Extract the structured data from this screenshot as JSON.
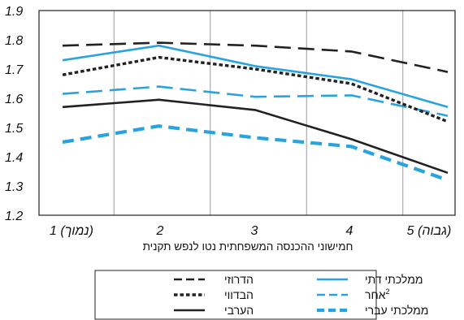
{
  "chart_data": {
    "type": "line",
    "xlabel": "חמישוני ההכנסה המשפחתית נטו לנפש תקנית",
    "x": [
      1,
      2,
      3,
      4,
      5
    ],
    "x_tick_labels": [
      "1 (נמוך)",
      "2",
      "3",
      "4",
      "5 (גבוה)"
    ],
    "ylim": [
      1.2,
      1.9
    ],
    "y_ticks": [
      "1.9",
      "1.8",
      "1.7",
      "1.6",
      "1.5",
      "1.4",
      "1.3",
      "1.2"
    ],
    "grid": "vertical",
    "legend_position": "bottom",
    "series": [
      {
        "name": "ממלכתי דתי",
        "color": "#29a3e0",
        "dash": "solid",
        "values": [
          1.73,
          1.78,
          1.71,
          1.665,
          1.57
        ]
      },
      {
        "name": "אחר",
        "name_sup": "2",
        "color": "#29a3e0",
        "dash": "dashed",
        "values": [
          1.615,
          1.64,
          1.605,
          1.61,
          1.54
        ]
      },
      {
        "name": "ממלכתי עברי",
        "color": "#29a3e0",
        "dash": "dashed-thick",
        "values": [
          1.45,
          1.505,
          1.465,
          1.435,
          1.32
        ]
      },
      {
        "name": "הדרוזי",
        "color": "#222222",
        "dash": "dashed",
        "values": [
          1.78,
          1.79,
          1.78,
          1.76,
          1.69
        ]
      },
      {
        "name": "הבדווי",
        "color": "#222222",
        "dash": "dotted",
        "values": [
          1.68,
          1.74,
          1.7,
          1.65,
          1.52
        ]
      },
      {
        "name": "הערבי",
        "color": "#222222",
        "dash": "solid",
        "values": [
          1.57,
          1.595,
          1.56,
          1.46,
          1.345
        ]
      }
    ]
  }
}
